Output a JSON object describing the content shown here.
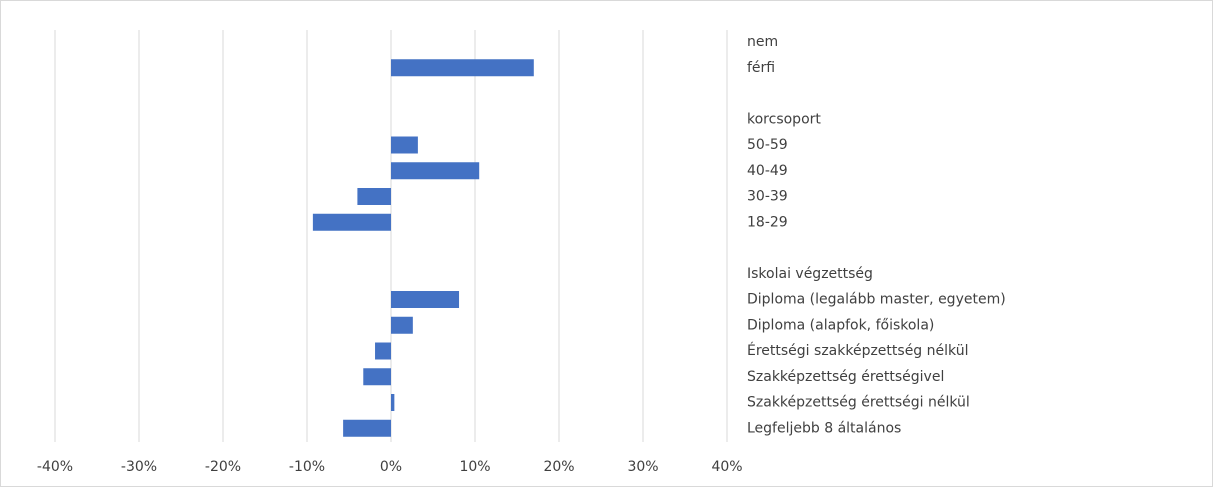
{
  "chart_data": {
    "type": "barh",
    "categories": [
      "nem",
      "férfi",
      null,
      "korcsoport",
      "50-59",
      "40-49",
      "30-39",
      "18-29",
      null,
      "Iskolai végzettség",
      "Diploma (legalább master, egyetem)",
      "Diploma (alapfok, főiskola)",
      "Érettségi szakképzettség nélkül",
      "Szakképzettség érettségivel",
      "Szakképzettség érettségi nélkül",
      "Legfeljebb 8 általános"
    ],
    "values": [
      null,
      17,
      null,
      null,
      3.2,
      10.5,
      -4,
      -9.3,
      null,
      null,
      8.1,
      2.6,
      -1.9,
      -3.3,
      0.4,
      -5.7
    ],
    "color": "#4472c4",
    "xlim": [
      -40,
      40
    ],
    "xticks": [
      {
        "value": -40,
        "label": "-40%"
      },
      {
        "value": -30,
        "label": "-30%"
      },
      {
        "value": -20,
        "label": "-20%"
      },
      {
        "value": -10,
        "label": "-10%"
      },
      {
        "value": 0,
        "label": "0%"
      },
      {
        "value": 10,
        "label": "10%"
      },
      {
        "value": 20,
        "label": "20%"
      },
      {
        "value": 30,
        "label": "30%"
      },
      {
        "value": 40,
        "label": "40%"
      }
    ],
    "grid": true
  }
}
